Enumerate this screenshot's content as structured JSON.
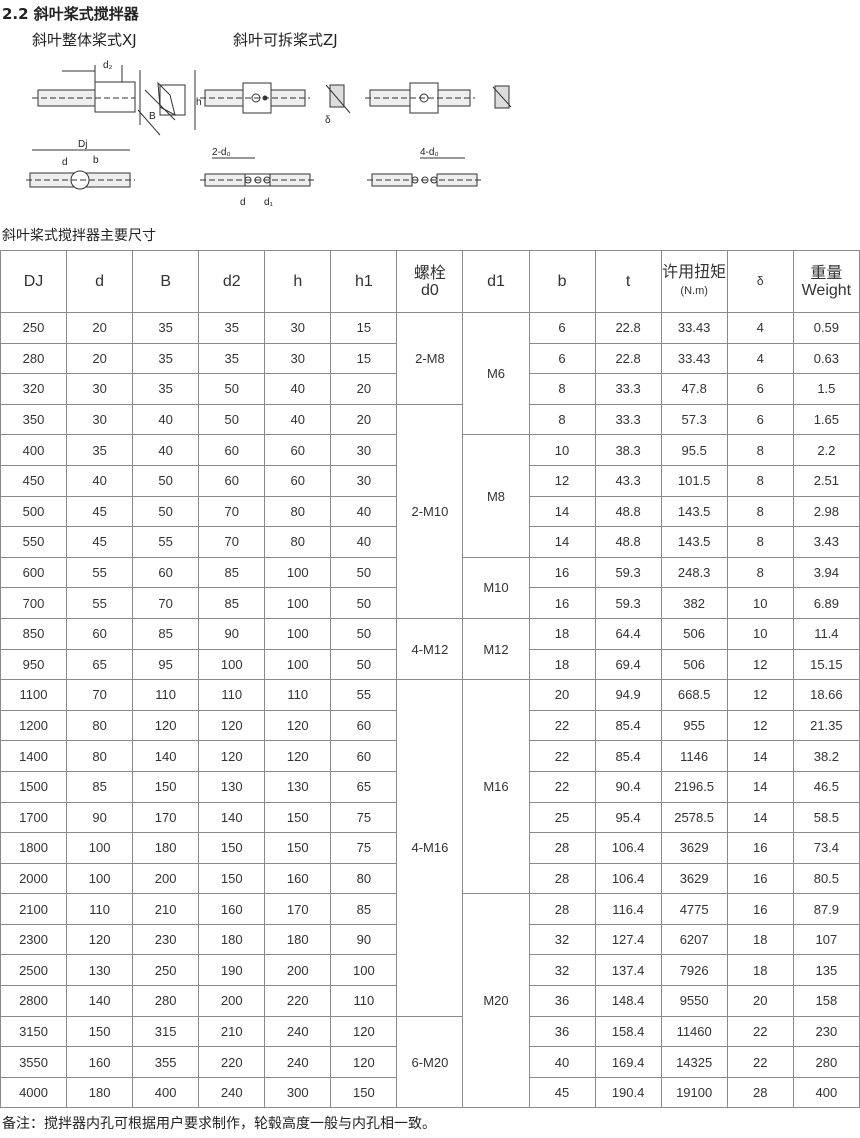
{
  "section_title": "2.2 斜叶桨式搅拌器",
  "variants": {
    "xj": "斜叶整体桨式XJ",
    "zj": "斜叶可拆桨式ZJ"
  },
  "diagram_labels": {
    "d2": "d₂",
    "h": "h",
    "B": "B",
    "delta": "δ",
    "Dj": "Dj",
    "d": "d",
    "b": "b",
    "h1": "h",
    "two_d0": "2-d₀",
    "four_d0": "4-d₀",
    "d_zj": "d",
    "d1": "d₁"
  },
  "table_caption": "斜叶桨式搅拌器主要尺寸",
  "table": {
    "headers": [
      "DJ",
      "d",
      "B",
      "d2",
      "h",
      "h1",
      "螺栓 d0",
      "d1",
      "b",
      "t",
      "许用扭矩 (N.m)",
      "δ",
      "重量 Weight"
    ],
    "header_parts": {
      "bolt_cn": "螺栓",
      "bolt_en": "d0",
      "torque_cn": "许用扭矩",
      "torque_unit": "(N.m)",
      "weight_cn": "重量",
      "weight_en": "Weight"
    },
    "rows": [
      [
        "250",
        "20",
        "35",
        "35",
        "30",
        "15",
        "6",
        "22.8",
        "33.43",
        "4",
        "0.59"
      ],
      [
        "280",
        "20",
        "35",
        "35",
        "30",
        "15",
        "6",
        "22.8",
        "33.43",
        "4",
        "0.63"
      ],
      [
        "320",
        "30",
        "35",
        "50",
        "40",
        "20",
        "8",
        "33.3",
        "47.8",
        "6",
        "1.5"
      ],
      [
        "350",
        "30",
        "40",
        "50",
        "40",
        "20",
        "8",
        "33.3",
        "57.3",
        "6",
        "1.65"
      ],
      [
        "400",
        "35",
        "40",
        "60",
        "60",
        "30",
        "10",
        "38.3",
        "95.5",
        "8",
        "2.2"
      ],
      [
        "450",
        "40",
        "50",
        "60",
        "60",
        "30",
        "12",
        "43.3",
        "101.5",
        "8",
        "2.51"
      ],
      [
        "500",
        "45",
        "50",
        "70",
        "80",
        "40",
        "14",
        "48.8",
        "143.5",
        "8",
        "2.98"
      ],
      [
        "550",
        "45",
        "55",
        "70",
        "80",
        "40",
        "14",
        "48.8",
        "143.5",
        "8",
        "3.43"
      ],
      [
        "600",
        "55",
        "60",
        "85",
        "100",
        "50",
        "16",
        "59.3",
        "248.3",
        "8",
        "3.94"
      ],
      [
        "700",
        "55",
        "70",
        "85",
        "100",
        "50",
        "16",
        "59.3",
        "382",
        "10",
        "6.89"
      ],
      [
        "850",
        "60",
        "85",
        "90",
        "100",
        "50",
        "18",
        "64.4",
        "506",
        "10",
        "11.4"
      ],
      [
        "950",
        "65",
        "95",
        "100",
        "100",
        "50",
        "18",
        "69.4",
        "506",
        "12",
        "15.15"
      ],
      [
        "1100",
        "70",
        "110",
        "110",
        "110",
        "55",
        "20",
        "94.9",
        "668.5",
        "12",
        "18.66"
      ],
      [
        "1200",
        "80",
        "120",
        "120",
        "120",
        "60",
        "22",
        "85.4",
        "955",
        "12",
        "21.35"
      ],
      [
        "1400",
        "80",
        "140",
        "120",
        "120",
        "60",
        "22",
        "85.4",
        "1146",
        "14",
        "38.2"
      ],
      [
        "1500",
        "85",
        "150",
        "130",
        "130",
        "65",
        "22",
        "90.4",
        "2196.5",
        "14",
        "46.5"
      ],
      [
        "1700",
        "90",
        "170",
        "140",
        "150",
        "75",
        "25",
        "95.4",
        "2578.5",
        "14",
        "58.5"
      ],
      [
        "1800",
        "100",
        "180",
        "150",
        "150",
        "75",
        "28",
        "106.4",
        "3629",
        "16",
        "73.4"
      ],
      [
        "2000",
        "100",
        "200",
        "150",
        "160",
        "80",
        "28",
        "106.4",
        "3629",
        "16",
        "80.5"
      ],
      [
        "2100",
        "110",
        "210",
        "160",
        "170",
        "85",
        "28",
        "116.4",
        "4775",
        "16",
        "87.9"
      ],
      [
        "2300",
        "120",
        "230",
        "180",
        "180",
        "90",
        "32",
        "127.4",
        "6207",
        "18",
        "107"
      ],
      [
        "2500",
        "130",
        "250",
        "190",
        "200",
        "100",
        "32",
        "137.4",
        "7926",
        "18",
        "135"
      ],
      [
        "2800",
        "140",
        "280",
        "200",
        "220",
        "110",
        "36",
        "148.4",
        "9550",
        "20",
        "158"
      ],
      [
        "3150",
        "150",
        "315",
        "210",
        "240",
        "120",
        "36",
        "158.4",
        "11460",
        "22",
        "230"
      ],
      [
        "3550",
        "160",
        "355",
        "220",
        "240",
        "120",
        "40",
        "169.4",
        "14325",
        "22",
        "280"
      ],
      [
        "4000",
        "180",
        "400",
        "240",
        "300",
        "150",
        "45",
        "190.4",
        "19100",
        "28",
        "400"
      ]
    ],
    "d0_groups": [
      {
        "value": "2-M8",
        "rows": 3
      },
      {
        "value": "2-M10",
        "rows": 7
      },
      {
        "value": "4-M12",
        "rows": 2
      },
      {
        "value": "4-M16",
        "rows": 11
      },
      {
        "value": "6-M20",
        "rows": 3
      }
    ],
    "d1_groups": [
      {
        "value": "M6",
        "rows": 4
      },
      {
        "value": "M8",
        "rows": 4
      },
      {
        "value": "M10",
        "rows": 2
      },
      {
        "value": "M12",
        "rows": 2
      },
      {
        "value": "M16",
        "rows": 7
      },
      {
        "value": "M20",
        "rows": 7
      }
    ]
  },
  "note": "备注：搅拌器内孔可根据用户要求制作，轮毂高度一般与内孔相一致。"
}
